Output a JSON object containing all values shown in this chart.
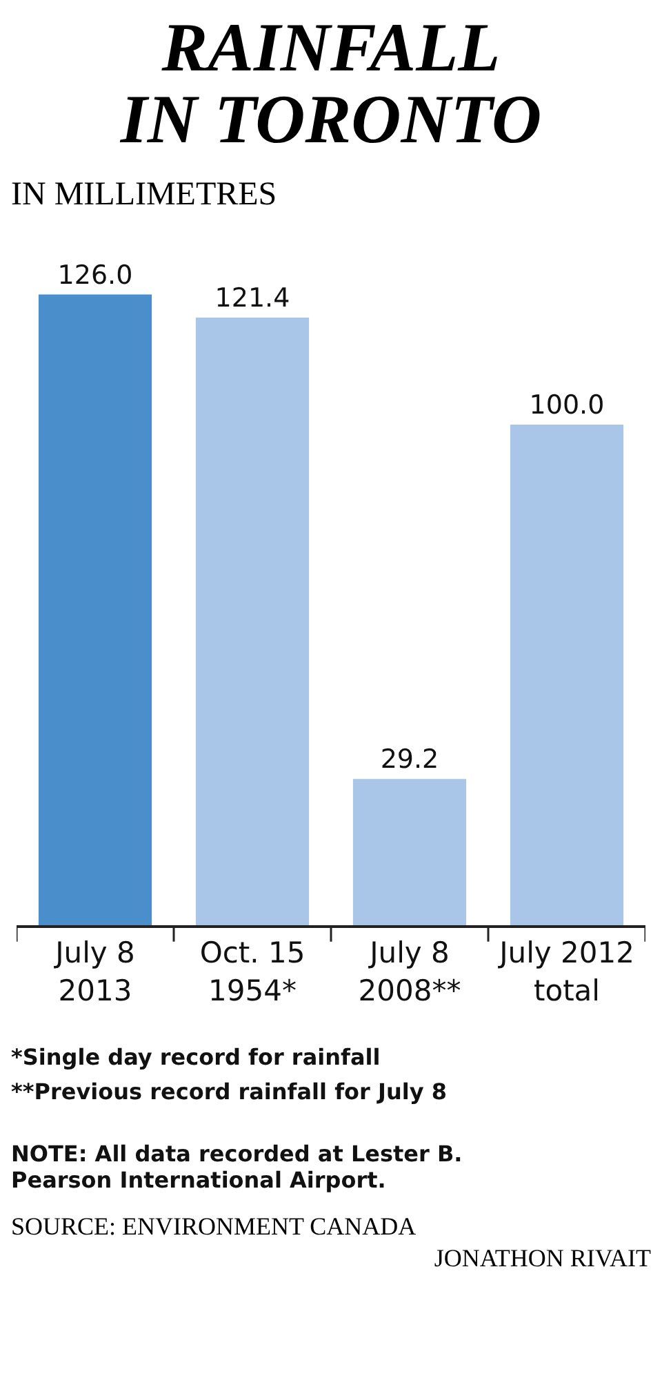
{
  "chart_data": {
    "type": "bar",
    "title": "RAINFALL\nIN TORONTO",
    "subtitle": "IN MILLIMETRES",
    "categories": [
      "July 8\n2013",
      "Oct. 15\n1954*",
      "July 8\n2008**",
      "July 2012\ntotal"
    ],
    "values": [
      126.0,
      121.4,
      29.2,
      100.0
    ],
    "colors": [
      "#4a8fcb",
      "#a9c5e8",
      "#a9c5e8",
      "#a9c5e8"
    ],
    "value_labels": [
      "126.0",
      "121.4",
      "29.2",
      "100.0"
    ],
    "annotations": [
      "*Single day record for rainfall",
      "**Previous record rainfall for July 8",
      "NOTE: All data recorded at Lester B. Pearson International Airport.",
      "SOURCE: ENVIRONMENT CANADA",
      "JONATHON RIVAIT"
    ]
  }
}
